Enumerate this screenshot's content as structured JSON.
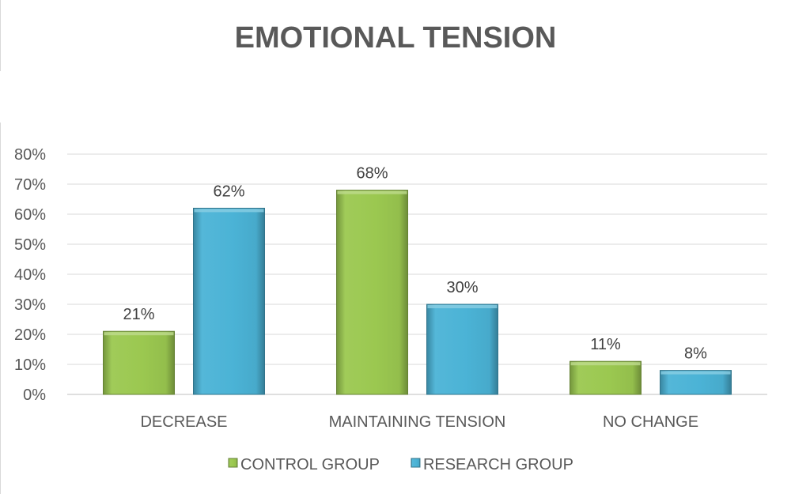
{
  "chart_data": {
    "type": "bar",
    "title": "EMOTIONAL TENSION",
    "categories": [
      "DECREASE",
      "MAINTAINING TENSION",
      "NO CHANGE"
    ],
    "series": [
      {
        "name": "CONTROL GROUP",
        "values": [
          21,
          68,
          11
        ],
        "labels": [
          "21%",
          "68%",
          "11%"
        ],
        "color": "#9bc850"
      },
      {
        "name": "RESEARCH GROUP",
        "values": [
          62,
          30,
          8
        ],
        "labels": [
          "62%",
          "30%",
          "8%"
        ],
        "color": "#4bb3d6"
      }
    ],
    "yticks": [
      "0%",
      "10%",
      "20%",
      "30%",
      "40%",
      "50%",
      "60%",
      "70%",
      "80%"
    ],
    "ylim": [
      0,
      80
    ],
    "xlabel": "",
    "ylabel": "",
    "grid": true,
    "legend": "bottom"
  }
}
